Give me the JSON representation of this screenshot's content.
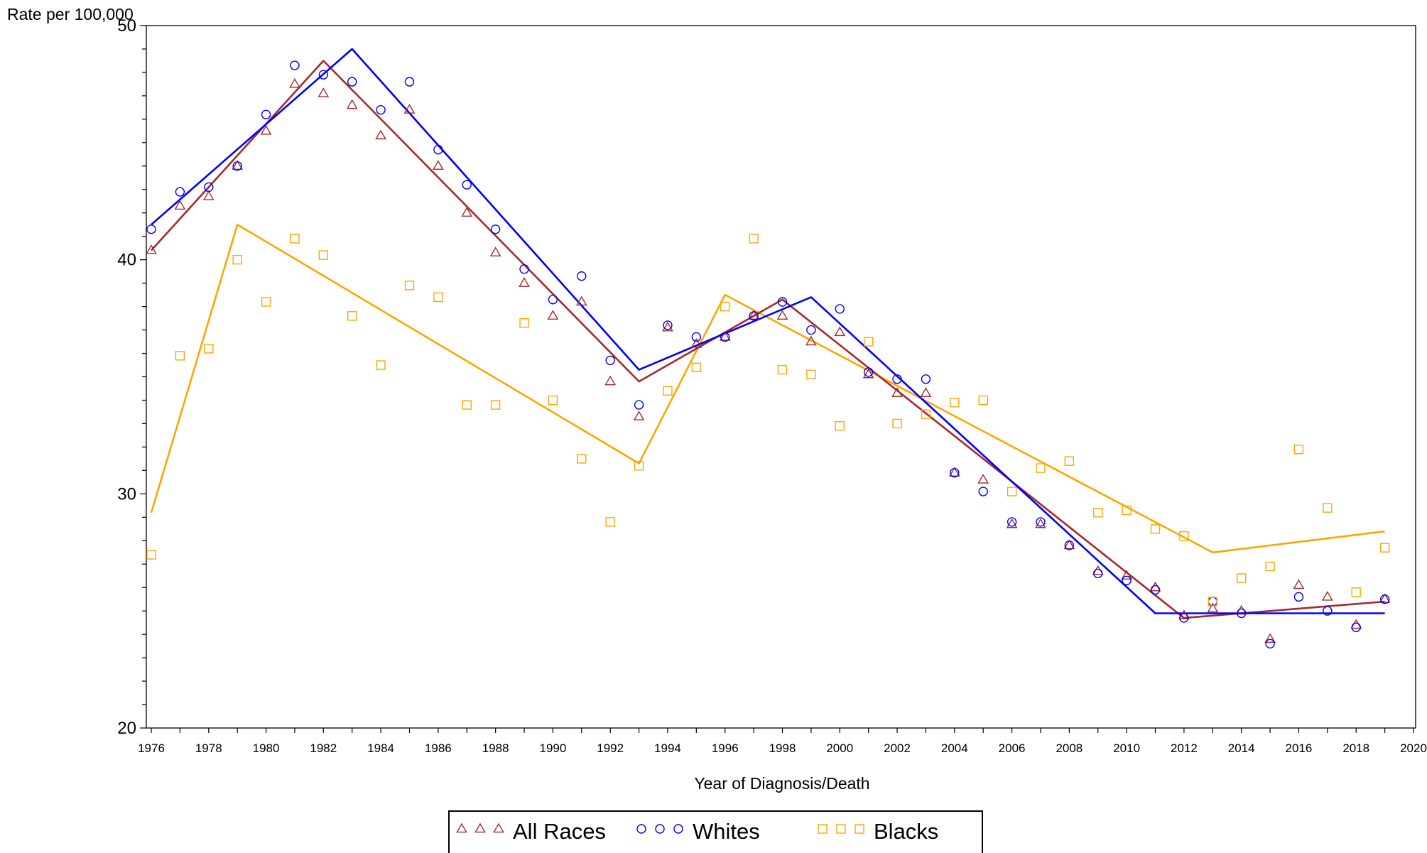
{
  "chart_data": {
    "type": "scatter",
    "title": "",
    "xlabel": "Year of Diagnosis/Death",
    "ylabel": "Rate per 100,000",
    "xlim": [
      1976,
      2020
    ],
    "ylim": [
      20,
      50
    ],
    "grid": false,
    "legend_position": "bottom",
    "x_ticks": [
      1976,
      1978,
      1980,
      1982,
      1984,
      1986,
      1988,
      1990,
      1992,
      1994,
      1996,
      1998,
      2000,
      2002,
      2004,
      2006,
      2008,
      2010,
      2012,
      2014,
      2016,
      2018,
      2020
    ],
    "y_ticks": [
      20,
      30,
      40,
      50
    ],
    "x": [
      1976,
      1977,
      1978,
      1979,
      1980,
      1981,
      1982,
      1983,
      1984,
      1985,
      1986,
      1987,
      1988,
      1989,
      1990,
      1991,
      1992,
      1993,
      1994,
      1995,
      1996,
      1997,
      1998,
      1999,
      2000,
      2001,
      2002,
      2003,
      2004,
      2005,
      2006,
      2007,
      2008,
      2009,
      2010,
      2011,
      2012,
      2013,
      2014,
      2015,
      2016,
      2017,
      2018,
      2019
    ],
    "series": [
      {
        "name": "All Races",
        "color": "#a52a2a",
        "marker": "triangle",
        "values": [
          40.4,
          42.3,
          42.7,
          44.0,
          45.5,
          47.5,
          47.1,
          46.6,
          45.3,
          46.4,
          44.0,
          42.0,
          40.3,
          39.0,
          37.6,
          38.2,
          34.8,
          33.3,
          37.1,
          36.4,
          36.7,
          37.6,
          37.6,
          36.5,
          36.9,
          35.1,
          34.3,
          34.3,
          30.9,
          30.6,
          28.7,
          28.7,
          27.8,
          26.7,
          26.5,
          26.0,
          24.8,
          25.1,
          25.0,
          23.8,
          26.1,
          25.6,
          24.4,
          25.5
        ],
        "trend": [
          [
            1976,
            40.4
          ],
          [
            1982,
            48.5
          ],
          [
            1993,
            34.8
          ],
          [
            1998,
            38.3
          ],
          [
            2012,
            24.7
          ],
          [
            2019,
            25.4
          ]
        ]
      },
      {
        "name": "Whites",
        "color": "#0000ff",
        "marker": "circle",
        "values": [
          41.3,
          42.9,
          43.1,
          44.0,
          46.2,
          48.3,
          47.9,
          47.6,
          46.4,
          47.6,
          44.7,
          43.2,
          41.3,
          39.6,
          38.3,
          39.3,
          35.7,
          33.8,
          37.2,
          36.7,
          36.7,
          37.6,
          38.2,
          37.0,
          37.9,
          35.2,
          34.9,
          34.9,
          30.9,
          30.1,
          28.8,
          28.8,
          27.8,
          26.6,
          26.3,
          25.9,
          24.7,
          25.4,
          24.9,
          23.6,
          25.6,
          25.0,
          24.3,
          25.5
        ],
        "trend": [
          [
            1976,
            41.5
          ],
          [
            1983,
            49.0
          ],
          [
            1993,
            35.3
          ],
          [
            1999,
            38.4
          ],
          [
            2011,
            24.9
          ],
          [
            2019,
            24.9
          ]
        ]
      },
      {
        "name": "Blacks",
        "color": "#ffa500",
        "marker": "square",
        "values": [
          27.4,
          35.9,
          36.2,
          40.0,
          38.2,
          40.9,
          40.2,
          37.6,
          35.5,
          38.9,
          38.4,
          33.8,
          33.8,
          37.3,
          34.0,
          31.5,
          28.8,
          31.2,
          34.4,
          35.4,
          38.0,
          40.9,
          35.3,
          35.1,
          32.9,
          36.5,
          33.0,
          33.4,
          33.9,
          34.0,
          30.1,
          31.1,
          31.4,
          29.2,
          29.3,
          28.5,
          28.2,
          25.4,
          26.4,
          26.9,
          31.9,
          29.4,
          25.8,
          27.7
        ],
        "trend": [
          [
            1976,
            29.2
          ],
          [
            1979,
            41.5
          ],
          [
            1993,
            31.3
          ],
          [
            1996,
            38.5
          ],
          [
            2013,
            27.5
          ],
          [
            2019,
            28.4
          ]
        ]
      }
    ]
  }
}
